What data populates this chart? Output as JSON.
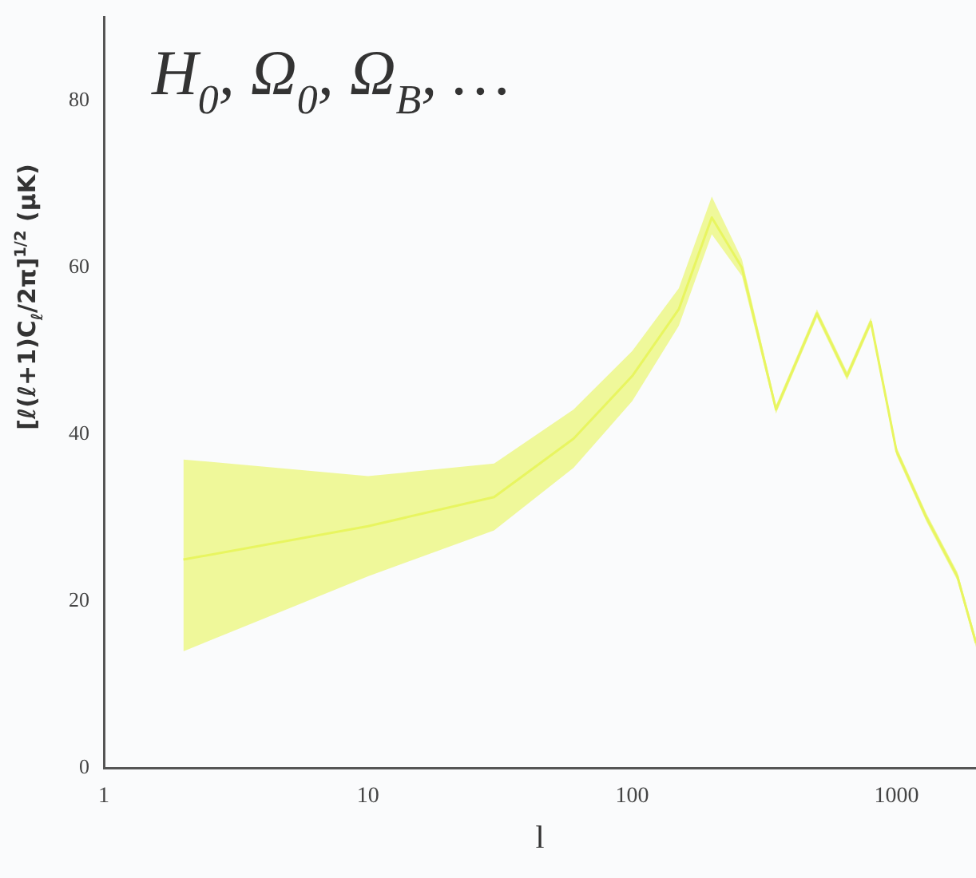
{
  "chart_data": {
    "type": "line",
    "title": "H$_{0}$, Ω$_{0}$, Ω$_{B}$, …",
    "xlabel": "l",
    "ylabel": "[ℓ(ℓ+1)C$_{ℓ}$/2π]$^{1/2}$ (μK)",
    "log": "x",
    "xlim": [
      1,
      2000
    ],
    "xticks": [
      1,
      10,
      100,
      1000
    ],
    "ylim": [
      0,
      90
    ],
    "yticks": [
      0,
      20,
      40,
      60,
      80
    ],
    "grid": false,
    "legend": false,
    "marker": "none",
    "series": [
      {
        "color": "#e8f560",
        "x": [
          2,
          10,
          30,
          60,
          100,
          150,
          200,
          260,
          350,
          500,
          650,
          800,
          1000,
          1300,
          1700,
          2000
        ],
        "values": [
          25,
          29,
          32.5,
          39.5,
          47,
          55,
          66,
          60,
          43,
          54.5,
          47,
          53.5,
          38,
          30,
          23,
          15
        ],
        "lower": [
          14,
          23,
          28.5,
          36,
          44,
          53,
          64,
          59,
          42.5,
          54,
          46.5,
          53,
          37.5,
          29.5,
          22.5,
          14.5
        ],
        "upper": [
          37,
          35,
          36.5,
          43,
          50,
          57.5,
          68.5,
          61,
          43.5,
          55,
          47.5,
          54,
          38.5,
          30.5,
          23.5,
          15.5
        ]
      }
    ]
  }
}
